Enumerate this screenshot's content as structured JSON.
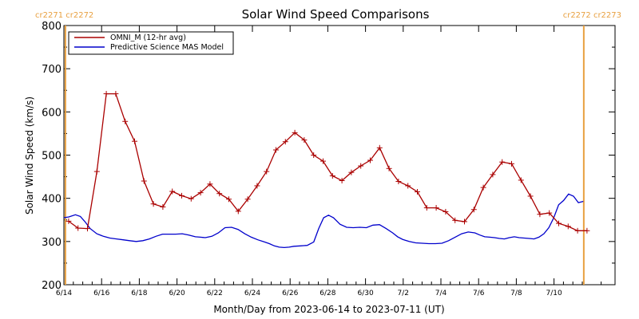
{
  "colors": {
    "omni": "#aa0000",
    "model": "#0000cc",
    "carrington": "#e8a040",
    "axes": "#000000"
  },
  "carrington": {
    "left_label": "cr2271 cr2272",
    "right_label": "cr2272 cr2273",
    "boundary_days": [
      0.1,
      27.6
    ]
  },
  "chart_data": {
    "type": "line",
    "title": "Solar Wind Speed Comparisons",
    "xlabel": "Month/Day from 2023-06-14 to 2023-07-11 (UT)",
    "ylabel": "Solar Wind Speed (km/s)",
    "ylim": [
      200,
      800
    ],
    "yticks": [
      200,
      300,
      400,
      500,
      600,
      700,
      800
    ],
    "yticks_minor": [
      250,
      350,
      450,
      550,
      650,
      750
    ],
    "xlim_days": [
      0,
      28
    ],
    "xticks": [
      {
        "day": 0,
        "label": "6/14"
      },
      {
        "day": 2,
        "label": "6/16"
      },
      {
        "day": 4,
        "label": "6/18"
      },
      {
        "day": 6,
        "label": "6/20"
      },
      {
        "day": 8,
        "label": "6/22"
      },
      {
        "day": 10,
        "label": "6/24"
      },
      {
        "day": 12,
        "label": "6/26"
      },
      {
        "day": 14,
        "label": "6/28"
      },
      {
        "day": 16,
        "label": "6/30"
      },
      {
        "day": 18,
        "label": "7/2"
      },
      {
        "day": 20,
        "label": "7/4"
      },
      {
        "day": 22,
        "label": "7/6"
      },
      {
        "day": 24,
        "label": "7/8"
      },
      {
        "day": 26,
        "label": "7/10"
      }
    ],
    "legend": {
      "placement": "top-left"
    },
    "series": [
      {
        "name": "OMNI_M (12-hr avg)",
        "markers": true,
        "x": [
          0.25,
          0.75,
          1.25,
          1.75,
          2.25,
          2.75,
          3.25,
          3.75,
          4.25,
          4.75,
          5.25,
          5.75,
          6.25,
          6.75,
          7.25,
          7.75,
          8.25,
          8.75,
          9.25,
          9.75,
          10.25,
          10.75,
          11.25,
          11.75,
          12.25,
          12.75,
          13.25,
          13.75,
          14.25,
          14.75,
          15.25,
          15.75,
          16.25,
          16.75,
          17.25,
          17.75,
          18.25,
          18.75,
          19.25,
          19.75,
          20.25,
          20.75,
          21.25,
          21.75,
          22.25,
          22.75,
          23.25,
          23.75,
          24.25,
          24.75,
          25.25,
          25.75,
          26.25,
          26.75,
          27.25,
          27.75
        ],
        "y": [
          347,
          331,
          330,
          462,
          642,
          642,
          578,
          532,
          440,
          387,
          380,
          416,
          406,
          399,
          413,
          433,
          411,
          398,
          370,
          398,
          429,
          462,
          512,
          531,
          552,
          535,
          500,
          486,
          452,
          441,
          460,
          475,
          488,
          517,
          469,
          439,
          429,
          415,
          378,
          378,
          369,
          349,
          346,
          374,
          425,
          455,
          484,
          480,
          442,
          405,
          363,
          366,
          342,
          335,
          325,
          325
        ]
      },
      {
        "name": "Predictive Science MAS Model",
        "markers": false,
        "x": [
          0,
          0.3,
          0.7,
          1.0,
          1.3,
          1.6,
          2.0,
          2.4,
          2.8,
          3.2,
          3.6,
          4.0,
          4.4,
          4.8,
          5.2,
          5.6,
          6.0,
          6.4,
          6.8,
          7.2,
          7.6,
          8.0,
          8.3,
          8.6,
          9.0,
          9.4,
          9.8,
          10.2,
          10.6,
          11.0,
          11.4,
          11.8,
          12.2,
          12.5,
          12.8,
          13.1,
          13.4,
          13.7,
          14.0,
          14.4,
          14.8,
          15.2,
          15.5,
          15.8,
          16.1,
          16.4,
          16.8,
          17.2,
          17.6,
          18.0,
          18.4,
          18.8,
          19.2,
          19.6,
          20.0,
          20.3,
          20.6,
          21.0,
          21.4,
          21.8,
          22.2,
          22.6,
          23.0,
          23.4,
          23.8,
          24.2,
          24.6,
          25.0,
          25.3,
          25.6,
          25.9,
          26.2,
          26.5,
          26.8,
          27.1,
          27.4,
          27.7
        ],
        "y": [
          355,
          357,
          362,
          358,
          345,
          330,
          318,
          312,
          308,
          306,
          304,
          302,
          300,
          302,
          306,
          312,
          317,
          317,
          317,
          318,
          315,
          311,
          310,
          309,
          312,
          320,
          332,
          333,
          328,
          318,
          310,
          304,
          299,
          295,
          290,
          287,
          286,
          287,
          289,
          290,
          291,
          299,
          330,
          355,
          361,
          355,
          340,
          333,
          332,
          333,
          332,
          338,
          339,
          330,
          320,
          311,
          305,
          300,
          297,
          296,
          295,
          295,
          296,
          302,
          310,
          318,
          322,
          320,
          315,
          311,
          310,
          309,
          307,
          306,
          309,
          311,
          309
        ]
      }
    ],
    "series_model_tail": {
      "x": [
        27.7,
        28.0,
        28.3,
        28.6,
        28.9,
        29.2,
        29.5,
        29.8,
        30.1,
        30.4,
        30.7,
        31.0,
        31.3,
        31.6
      ],
      "y": [
        309,
        308,
        307,
        306,
        310,
        318,
        332,
        355,
        385,
        395,
        410,
        405,
        390,
        393
      ]
    }
  }
}
